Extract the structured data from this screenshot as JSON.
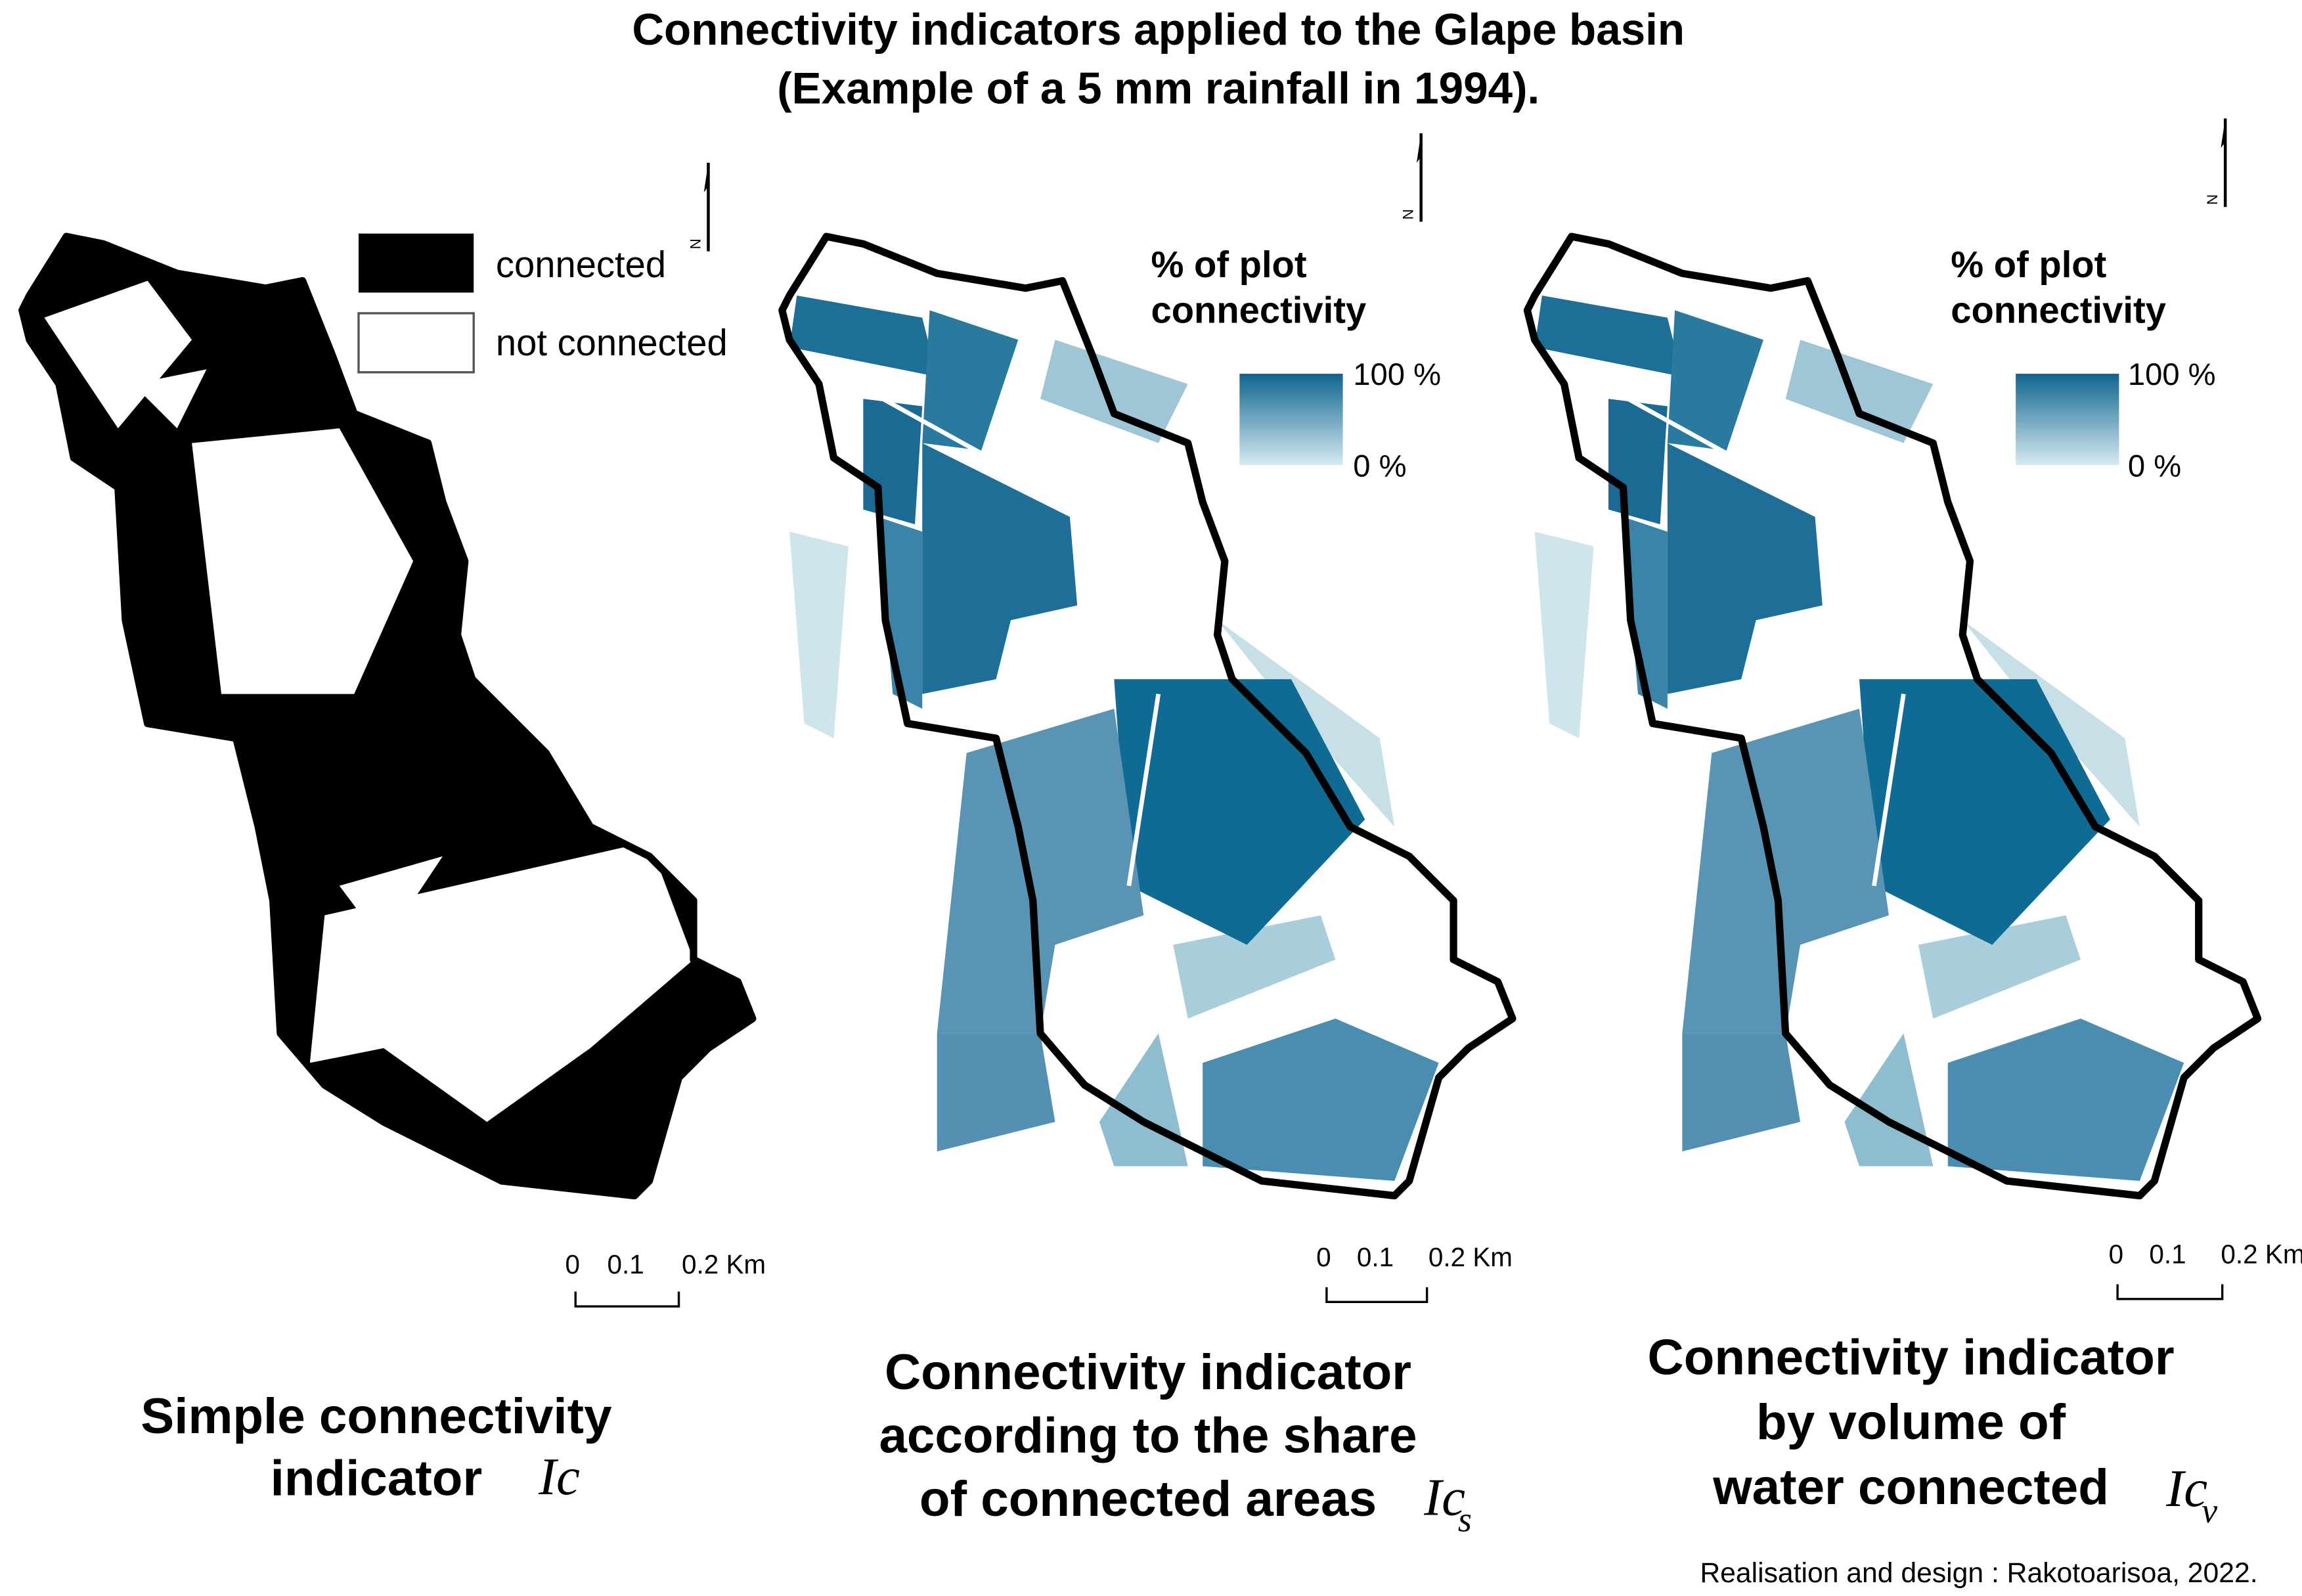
{
  "title": [
    "Connectivity indicators applied to the Glape basin",
    "(Example of a 5 mm rainfall in 1994)."
  ],
  "panels": [
    {
      "legend": {
        "items": [
          "connected",
          "not connected"
        ]
      },
      "north": "N",
      "scale": {
        "labels": [
          "0",
          "0.1",
          "0.2 Km"
        ]
      },
      "caption": {
        "lines": [
          "Simple connectivity",
          "indicator"
        ],
        "symbol": "Ic"
      }
    },
    {
      "legend": {
        "title": [
          "% of plot",
          "connectivity"
        ],
        "max": "100 %",
        "min": "0 %"
      },
      "north": "N",
      "scale": {
        "labels": [
          "0",
          "0.1",
          "0.2 Km"
        ]
      },
      "caption": {
        "lines": [
          "Connectivity indicator",
          "according to the share",
          "of connected areas"
        ],
        "symbol": "Ic",
        "subscript": "s"
      }
    },
    {
      "legend": {
        "title": [
          "% of plot",
          "connectivity"
        ],
        "max": "100 %",
        "min": "0 %"
      },
      "north": "N",
      "scale": {
        "labels": [
          "0",
          "0.1",
          "0.2 Km"
        ]
      },
      "caption": {
        "lines": [
          "Connectivity indicator",
          "by volume of",
          "water connected"
        ],
        "symbol": "Ic",
        "subscript": "v"
      }
    }
  ],
  "credit": "Realisation and design : Rakotoarisoa, 2022."
}
